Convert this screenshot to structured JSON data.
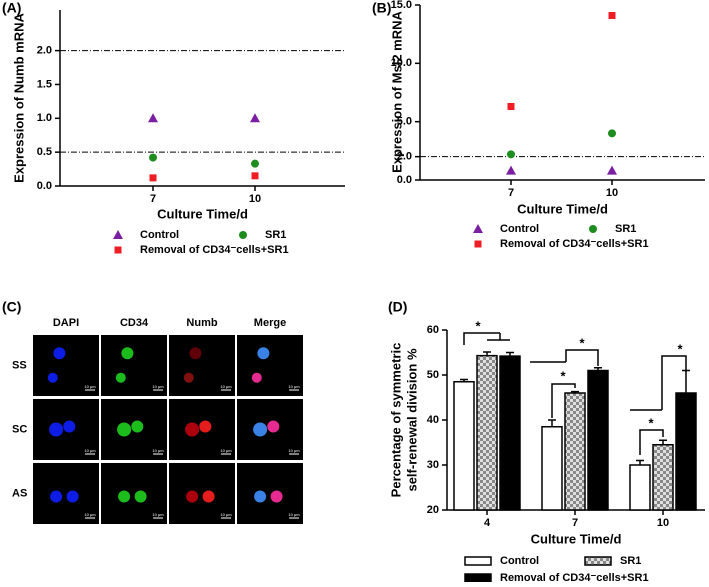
{
  "chart_data": [
    {
      "type": "scatter",
      "panel_label": "(A)",
      "ylabel": "Expression of Numb mRNA",
      "xlabel": "Culture Time/d",
      "categories": [
        "7",
        "10"
      ],
      "ylim": [
        0,
        2.6
      ],
      "yticks": [
        {
          "value": 0,
          "label": "0.0"
        },
        {
          "value": 0.5,
          "label": "0.5"
        },
        {
          "value": 1,
          "label": "1.0"
        },
        {
          "value": 1.5,
          "label": "1.5"
        },
        {
          "value": 2,
          "label": "2.0"
        }
      ],
      "hlines": [
        0.5,
        2
      ],
      "series": [
        {
          "name": "Control",
          "color": "#7a1fa2",
          "marker": "triangle",
          "values": [
            1.0,
            1.0
          ]
        },
        {
          "name": "SR1",
          "color": "#1e8c1e",
          "marker": "circle",
          "values": [
            0.42,
            0.33
          ]
        },
        {
          "name": "Removal of CD34⁻cells+SR1",
          "color": "#ee1c24",
          "marker": "square",
          "values": [
            0.12,
            0.15
          ]
        }
      ]
    },
    {
      "type": "scatter",
      "panel_label": "(B)",
      "ylabel": "Expression of Msi2 mRNA",
      "xlabel": "Culture Time/d",
      "categories": [
        "7",
        "10"
      ],
      "ylim": [
        0,
        15
      ],
      "yticks": [
        {
          "value": 0,
          "label": "0.0"
        },
        {
          "value": 2,
          "label": "2.0"
        },
        {
          "value": 5,
          "label": "5.0"
        },
        {
          "value": 10,
          "label": "10.0"
        },
        {
          "value": 15,
          "label": "15.0"
        }
      ],
      "hlines": [
        2
      ],
      "series": [
        {
          "name": "Control",
          "color": "#7a1fa2",
          "marker": "triangle",
          "values": [
            0.8,
            0.8
          ]
        },
        {
          "name": "SR1",
          "color": "#1e8c1e",
          "marker": "circle",
          "values": [
            2.2,
            4.0
          ]
        },
        {
          "name": "Removal of CD34⁻cells+SR1",
          "color": "#ee1c24",
          "marker": "square",
          "values": [
            6.3,
            14.1
          ]
        }
      ]
    },
    {
      "type": "bar",
      "panel_label": "(D)",
      "ylabel": [
        "Percentage of symmetric",
        "self-renewal division %"
      ],
      "xlabel": "Culture Time/d",
      "categories": [
        "4",
        "7",
        "10"
      ],
      "ylim": [
        20,
        60
      ],
      "yticks": [
        20,
        30,
        40,
        50,
        60
      ],
      "annotations": [
        "*",
        "*",
        "*",
        "*",
        "*"
      ],
      "series": [
        {
          "name": "Control",
          "color": "#ffffff",
          "values": [
            48.5,
            38.5,
            30
          ],
          "errors": [
            0.5,
            1.5,
            1
          ]
        },
        {
          "name": "SR1",
          "color": "#999999",
          "pattern": "checker",
          "values": [
            54.3,
            46,
            34.5
          ],
          "errors": [
            0.8,
            0.3,
            1
          ]
        },
        {
          "name": "Removal of CD34⁻cells+SR1",
          "color": "#000000",
          "values": [
            54.2,
            51,
            46
          ],
          "errors": [
            0.8,
            0.6,
            5
          ]
        }
      ]
    }
  ],
  "image_panel": {
    "label": "(C)",
    "columns": [
      "DAPI",
      "CD34",
      "Numb",
      "Merge"
    ],
    "rows": [
      "SS",
      "SC",
      "AS"
    ],
    "scale_bar_label": "10 μm"
  }
}
